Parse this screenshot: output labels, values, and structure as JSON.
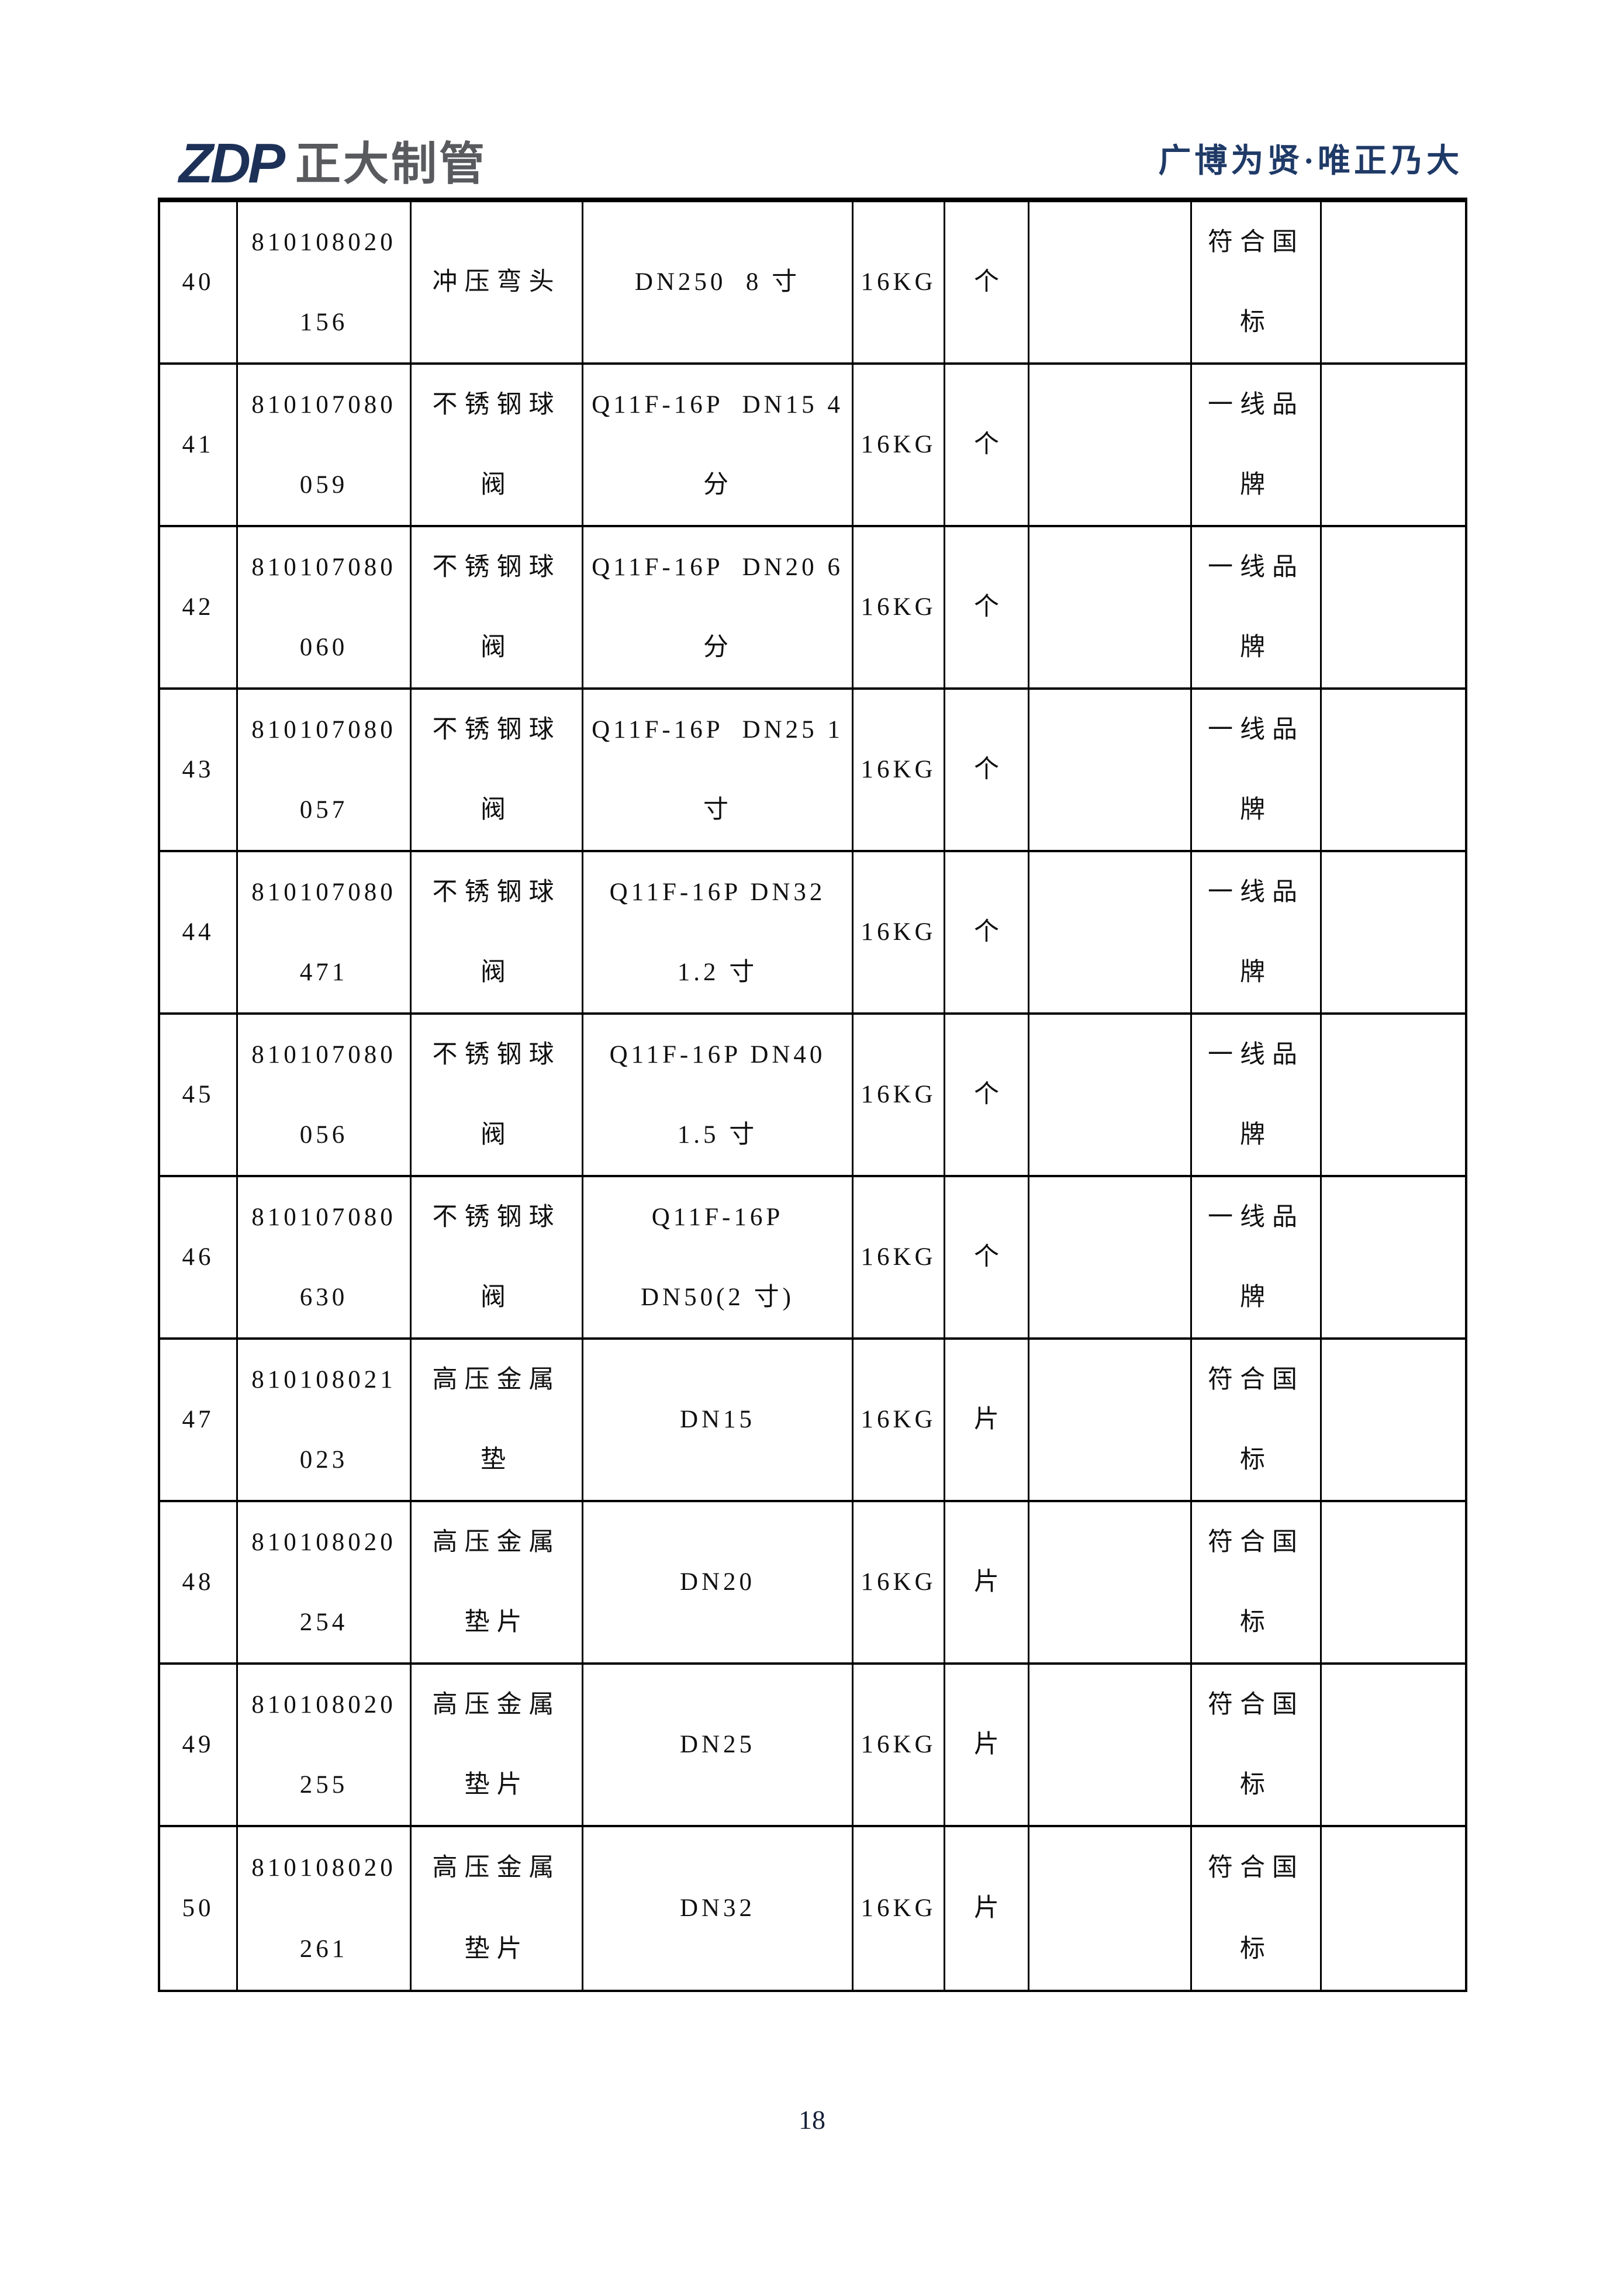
{
  "header": {
    "logo_text": "ZDP",
    "logo_name": "正大制管",
    "slogan": "广博为贤·唯正乃大",
    "colors": {
      "logo_navy": "#1d3158",
      "logo_gray": "#595a5e",
      "slogan_navy": "#1f3a67"
    }
  },
  "table": {
    "rows": [
      {
        "seq": "40",
        "code": [
          "810108020",
          "156"
        ],
        "name": [
          "冲压弯头"
        ],
        "spec": [
          "DN250  8 寸"
        ],
        "pressure": "16KG",
        "unit": "个",
        "remark": [
          "符合国",
          "标"
        ]
      },
      {
        "seq": "41",
        "code": [
          "810107080",
          "059"
        ],
        "name": [
          "不锈钢球",
          "阀"
        ],
        "spec": [
          "Q11F-16P  DN15 4",
          "分"
        ],
        "pressure": "16KG",
        "unit": "个",
        "remark": [
          "一线品",
          "牌"
        ]
      },
      {
        "seq": "42",
        "code": [
          "810107080",
          "060"
        ],
        "name": [
          "不锈钢球",
          "阀"
        ],
        "spec": [
          "Q11F-16P  DN20 6",
          "分"
        ],
        "pressure": "16KG",
        "unit": "个",
        "remark": [
          "一线品",
          "牌"
        ]
      },
      {
        "seq": "43",
        "code": [
          "810107080",
          "057"
        ],
        "name": [
          "不锈钢球",
          "阀"
        ],
        "spec": [
          "Q11F-16P  DN25 1",
          "寸"
        ],
        "pressure": "16KG",
        "unit": "个",
        "remark": [
          "一线品",
          "牌"
        ]
      },
      {
        "seq": "44",
        "code": [
          "810107080",
          "471"
        ],
        "name": [
          "不锈钢球",
          "阀"
        ],
        "spec": [
          "Q11F-16P DN32",
          "1.2 寸"
        ],
        "pressure": "16KG",
        "unit": "个",
        "remark": [
          "一线品",
          "牌"
        ]
      },
      {
        "seq": "45",
        "code": [
          "810107080",
          "056"
        ],
        "name": [
          "不锈钢球",
          "阀"
        ],
        "spec": [
          "Q11F-16P DN40",
          "1.5 寸"
        ],
        "pressure": "16KG",
        "unit": "个",
        "remark": [
          "一线品",
          "牌"
        ]
      },
      {
        "seq": "46",
        "code": [
          "810107080",
          "630"
        ],
        "name": [
          "不锈钢球",
          "阀"
        ],
        "spec": [
          "Q11F-16P",
          "DN50(2 寸)"
        ],
        "pressure": "16KG",
        "unit": "个",
        "remark": [
          "一线品",
          "牌"
        ]
      },
      {
        "seq": "47",
        "code": [
          "810108021",
          "023"
        ],
        "name": [
          "高压金属",
          "垫"
        ],
        "spec": [
          "DN15"
        ],
        "pressure": "16KG",
        "unit": "片",
        "remark": [
          "符合国",
          "标"
        ]
      },
      {
        "seq": "48",
        "code": [
          "810108020",
          "254"
        ],
        "name": [
          "高压金属",
          "垫片"
        ],
        "spec": [
          "DN20"
        ],
        "pressure": "16KG",
        "unit": "片",
        "remark": [
          "符合国",
          "标"
        ]
      },
      {
        "seq": "49",
        "code": [
          "810108020",
          "255"
        ],
        "name": [
          "高压金属",
          "垫片"
        ],
        "spec": [
          "DN25"
        ],
        "pressure": "16KG",
        "unit": "片",
        "remark": [
          "符合国",
          "标"
        ]
      },
      {
        "seq": "50",
        "code": [
          "810108020",
          "261"
        ],
        "name": [
          "高压金属",
          "垫片"
        ],
        "spec": [
          "DN32"
        ],
        "pressure": "16KG",
        "unit": "片",
        "remark": [
          "符合国",
          "标"
        ]
      }
    ]
  },
  "footer": {
    "page_number": "18"
  }
}
